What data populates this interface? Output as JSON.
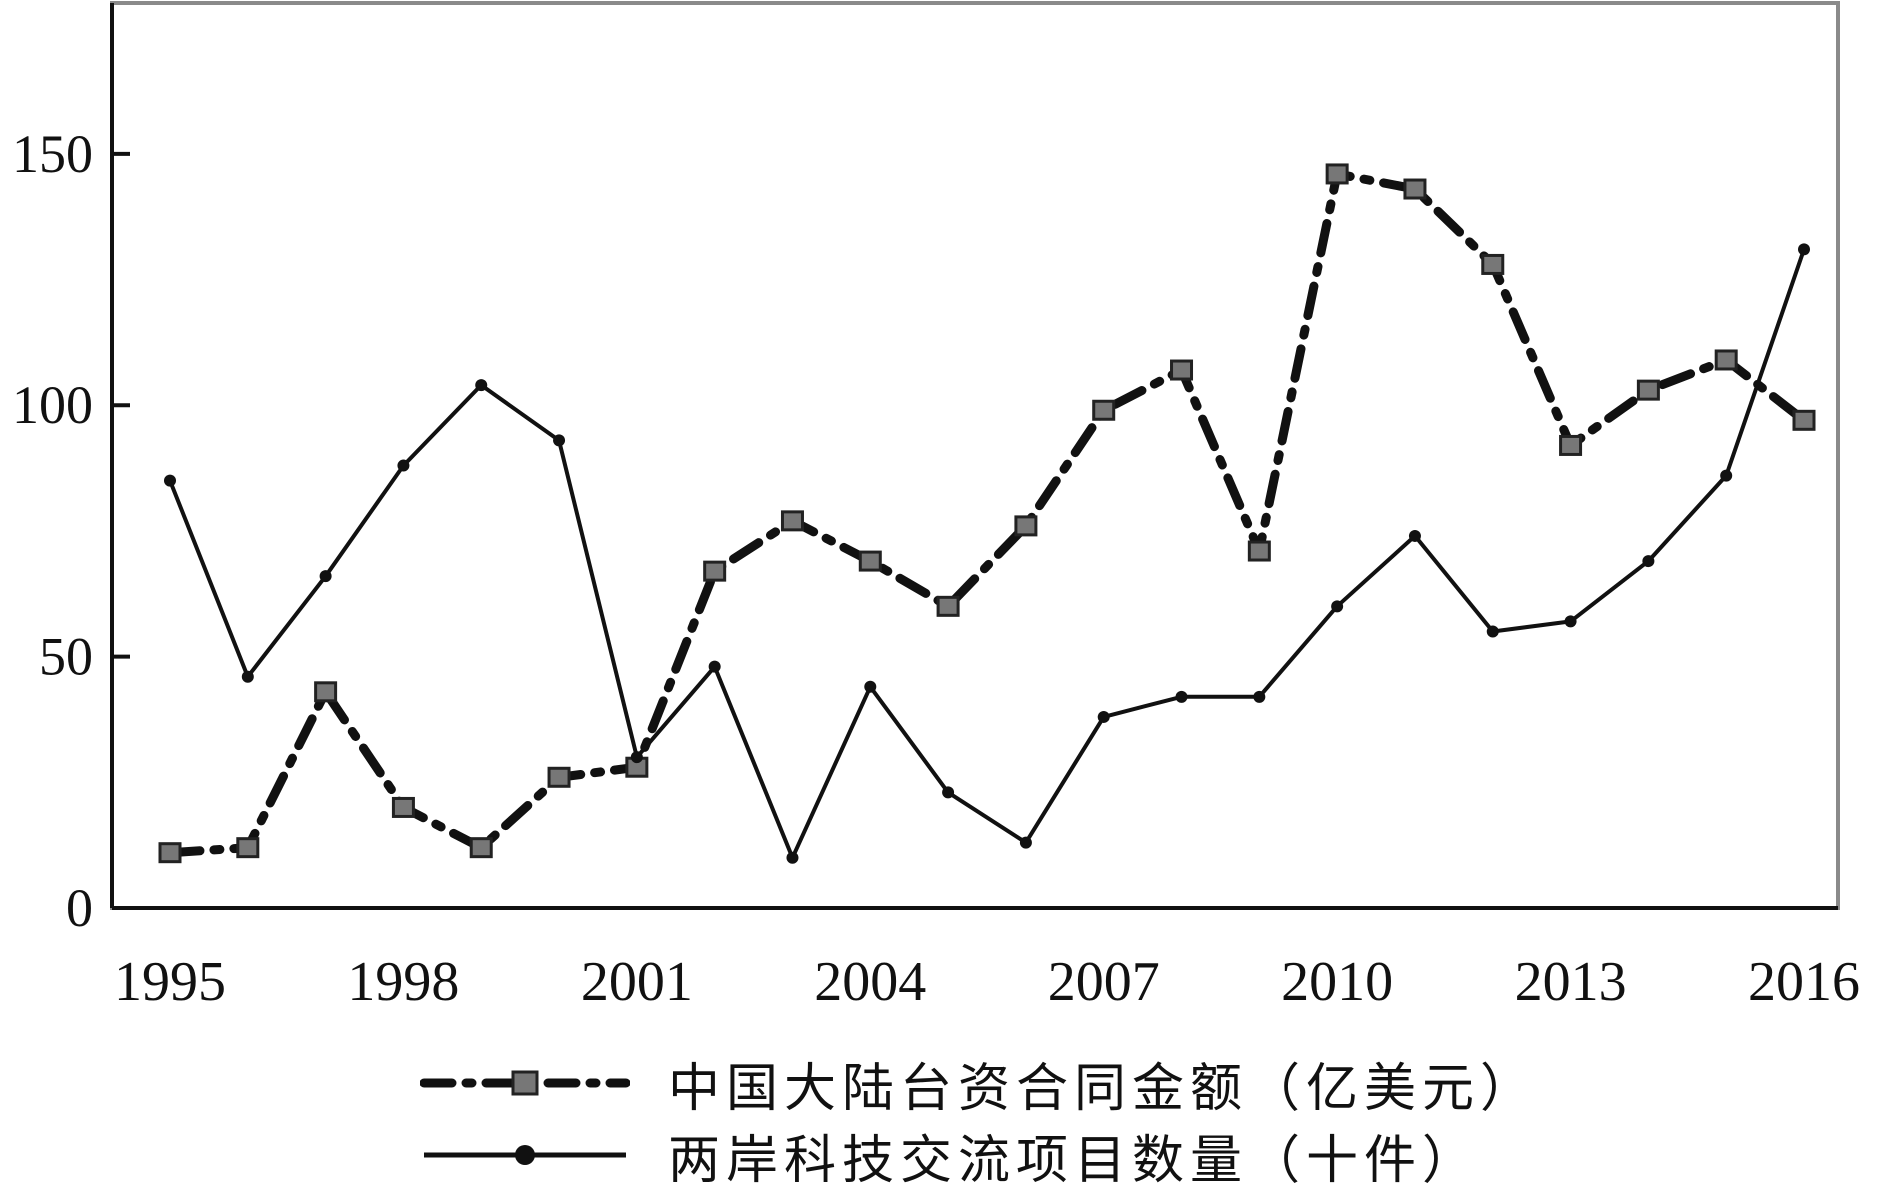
{
  "chart_data": {
    "type": "line",
    "title": "",
    "xlabel": "",
    "ylabel": "",
    "ylim": [
      0,
      180
    ],
    "yticks": [
      0,
      50,
      100,
      150
    ],
    "xlim": [
      1995,
      2016
    ],
    "xticks": [
      1995,
      1998,
      2001,
      2004,
      2007,
      2010,
      2013,
      2016
    ],
    "grid": false,
    "legend_position": "bottom",
    "series": [
      {
        "name": "中国大陆台资合同金额（亿美元）",
        "style": "dash-dot",
        "marker": "gray-square",
        "color": "#111111",
        "x": [
          1995,
          1996,
          1997,
          1998,
          1999,
          2000,
          2001,
          2002,
          2003,
          2004,
          2005,
          2006,
          2007,
          2008,
          2009,
          2010,
          2011,
          2012,
          2013,
          2014,
          2015,
          2016
        ],
        "values": [
          11,
          12,
          43,
          20,
          12,
          26,
          28,
          67,
          77,
          69,
          60,
          76,
          99,
          107,
          71,
          146,
          143,
          128,
          92,
          103,
          109,
          97
        ]
      },
      {
        "name": "两岸科技交流项目数量（十件）",
        "style": "solid",
        "marker": "dot",
        "color": "#111111",
        "x": [
          1995,
          1996,
          1997,
          1998,
          1999,
          2000,
          2001,
          2002,
          2003,
          2004,
          2005,
          2006,
          2007,
          2008,
          2009,
          2010,
          2011,
          2012,
          2013,
          2014,
          2015,
          2016
        ],
        "values": [
          85,
          46,
          66,
          88,
          104,
          93,
          30,
          48,
          10,
          44,
          23,
          13,
          38,
          42,
          42,
          60,
          74,
          55,
          57,
          69,
          86,
          131
        ]
      }
    ]
  }
}
